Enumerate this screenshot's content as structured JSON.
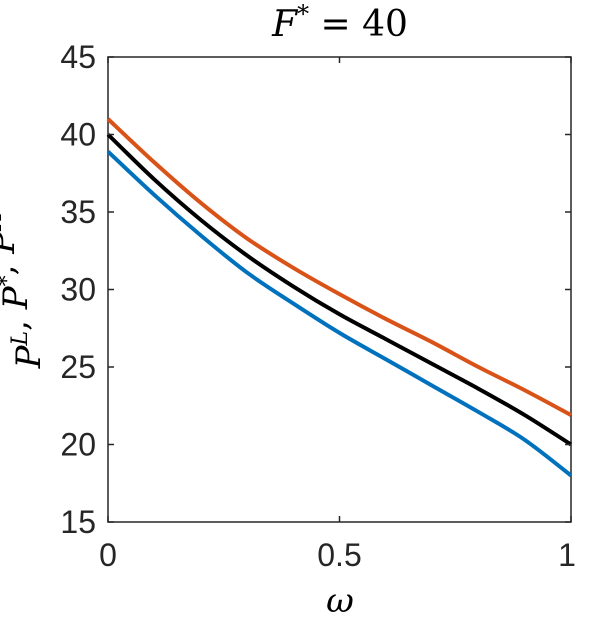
{
  "chart_data": {
    "type": "line",
    "title": "F* = 40",
    "title_parts": {
      "var": "F",
      "sup": "*",
      "rest": " = 40"
    },
    "xlabel": "ω",
    "ylabel": "P^L, P^*, P^H",
    "ylabel_parts": [
      {
        "base": "P",
        "sup": "L"
      },
      {
        "sep": ", "
      },
      {
        "base": "P",
        "sup": "*"
      },
      {
        "sep": ", "
      },
      {
        "base": "P",
        "sup": "H"
      }
    ],
    "xlim": [
      0,
      1
    ],
    "ylim": [
      15,
      45
    ],
    "xticks": [
      0,
      0.5,
      1
    ],
    "xtick_labels": [
      "0",
      "0.5",
      "1"
    ],
    "yticks": [
      15,
      20,
      25,
      30,
      35,
      40,
      45
    ],
    "ytick_labels": [
      "15",
      "20",
      "25",
      "30",
      "35",
      "40",
      "45"
    ],
    "grid": false,
    "x": [
      0,
      0.1,
      0.2,
      0.3,
      0.4,
      0.5,
      0.6,
      0.7,
      0.8,
      0.9,
      1.0
    ],
    "series": [
      {
        "color": "#D95319",
        "values": [
          41.0,
          38.2,
          35.6,
          33.3,
          31.4,
          29.7,
          28.1,
          26.6,
          25.0,
          23.5,
          21.9
        ]
      },
      {
        "color": "#000000",
        "values": [
          40.0,
          37.1,
          34.5,
          32.2,
          30.2,
          28.4,
          26.8,
          25.2,
          23.6,
          21.9,
          20.0
        ]
      },
      {
        "color": "#0072BD",
        "values": [
          38.9,
          36.1,
          33.5,
          31.1,
          29.1,
          27.2,
          25.5,
          23.8,
          22.1,
          20.3,
          18.0
        ]
      }
    ]
  }
}
